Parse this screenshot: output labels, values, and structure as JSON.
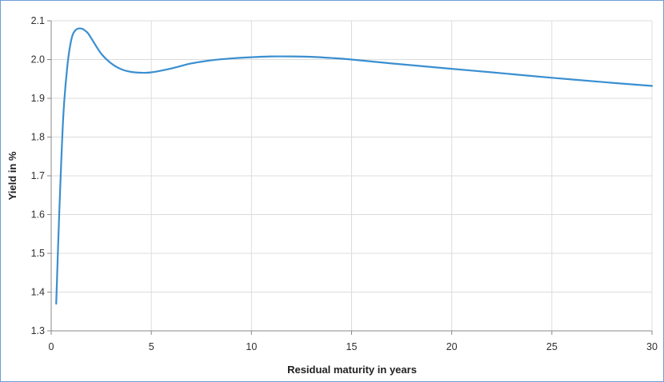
{
  "chart_data": {
    "type": "line",
    "xlabel": "Residual maturity in years",
    "ylabel": "Yield in %",
    "xlim": [
      0,
      30
    ],
    "ylim": [
      1.3,
      2.1
    ],
    "x_ticks": [
      0,
      5,
      10,
      15,
      20,
      25,
      30
    ],
    "y_ticks": [
      1.3,
      1.4,
      1.5,
      1.6,
      1.7,
      1.8,
      1.9,
      2.0,
      2.1
    ],
    "x_tick_labels": [
      "0",
      "5",
      "10",
      "15",
      "20",
      "25",
      "30"
    ],
    "y_tick_labels": [
      "1.3",
      "1.4",
      "1.5",
      "1.6",
      "1.7",
      "1.8",
      "1.9",
      "2.0",
      "2.1"
    ],
    "grid": true,
    "series": [
      {
        "color": "#3a8fd0",
        "x": [
          0.25,
          0.4,
          0.6,
          0.8,
          1.0,
          1.2,
          1.5,
          1.8,
          2.0,
          2.5,
          3.0,
          3.5,
          4.0,
          4.5,
          5.0,
          6.0,
          7.0,
          8.0,
          9.0,
          10.0,
          11.0,
          12.0,
          13.0,
          14.0,
          15.0,
          17.0,
          20.0,
          22.0,
          25.0,
          28.0,
          30.0
        ],
        "y": [
          1.37,
          1.6,
          1.85,
          1.98,
          2.05,
          2.075,
          2.08,
          2.07,
          2.055,
          2.015,
          1.99,
          1.975,
          1.968,
          1.966,
          1.967,
          1.977,
          1.99,
          1.998,
          2.003,
          2.006,
          2.008,
          2.008,
          2.007,
          2.004,
          2.0,
          1.99,
          1.976,
          1.967,
          1.953,
          1.94,
          1.932
        ]
      }
    ]
  }
}
